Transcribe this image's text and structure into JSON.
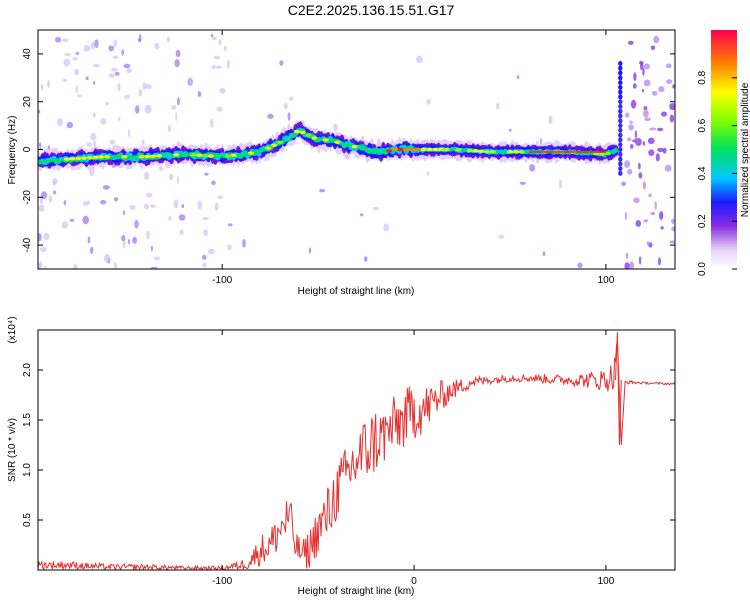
{
  "title": "C2E2.2025.136.15.51.G17",
  "chart_data": [
    {
      "type": "heatmap",
      "xlabel": "Height of straight line (km)",
      "ylabel": "Frequency (Hz)",
      "xlim": [
        -196,
        136
      ],
      "ylim": [
        -50,
        50
      ],
      "x_ticks": [
        -100,
        100
      ],
      "y_ticks": [
        -40,
        -20,
        0,
        20,
        40
      ],
      "colorbar": {
        "label": "Normalized spectral amplitude",
        "range": [
          0,
          1
        ],
        "ticks": [
          "0.0",
          "0.2",
          "0.4",
          "0.6",
          "0.8"
        ]
      },
      "ridge": {
        "x": [
          -196,
          -180,
          -160,
          -140,
          -120,
          -100,
          -90,
          -80,
          -70,
          -60,
          -55,
          -50,
          -45,
          -40,
          -35,
          -30,
          -25,
          -20,
          -15,
          -10,
          -5,
          0,
          20,
          40,
          60,
          80,
          100,
          106
        ],
        "y": [
          -5,
          -4,
          -3,
          -3,
          -2,
          -3,
          -2,
          -1,
          3,
          8,
          6,
          4,
          4,
          3,
          2,
          1,
          0,
          -1,
          -1,
          0,
          0,
          0,
          0,
          -1,
          -1,
          -1,
          -2,
          0
        ]
      },
      "grid": false
    },
    {
      "type": "line",
      "xlabel": "Height of straight line (km)",
      "ylabel": "SNR (10 * v/v)",
      "y_multiplier": "(x10⁴)",
      "xlim": [
        -196,
        136
      ],
      "ylim": [
        0,
        2.4
      ],
      "x_ticks": [
        -100,
        0,
        100
      ],
      "y_ticks": [
        "0.5",
        "1.0",
        "1.5",
        "2.0"
      ],
      "series": [
        {
          "color": "#e8302e",
          "x": [
            -196,
            -180,
            -160,
            -140,
            -120,
            -100,
            -90,
            -85,
            -80,
            -75,
            -70,
            -65,
            -62,
            -58,
            -55,
            -50,
            -45,
            -40,
            -35,
            -30,
            -25,
            -20,
            -15,
            -10,
            -5,
            0,
            5,
            10,
            15,
            20,
            30,
            40,
            50,
            60,
            70,
            80,
            90,
            100,
            104,
            106,
            108,
            110,
            120,
            136
          ],
          "y": [
            0.05,
            0.05,
            0.03,
            0.03,
            0.02,
            0.02,
            0.05,
            0.1,
            0.2,
            0.25,
            0.4,
            0.55,
            0.25,
            0.15,
            0.2,
            0.4,
            0.55,
            0.8,
            0.95,
            1.1,
            1.2,
            1.3,
            1.35,
            1.45,
            1.5,
            1.6,
            1.6,
            1.68,
            1.75,
            1.8,
            1.88,
            1.9,
            1.92,
            1.92,
            1.91,
            1.9,
            1.9,
            1.9,
            1.95,
            2.3,
            1.25,
            1.88,
            1.87,
            1.86
          ],
          "noise": [
            0.04,
            0.04,
            0.03,
            0.03,
            0.02,
            0.02,
            0.05,
            0.1,
            0.15,
            0.18,
            0.2,
            0.25,
            0.15,
            0.15,
            0.2,
            0.25,
            0.3,
            0.3,
            0.3,
            0.35,
            0.35,
            0.35,
            0.3,
            0.3,
            0.3,
            0.3,
            0.25,
            0.2,
            0.15,
            0.1,
            0.06,
            0.04,
            0.04,
            0.04,
            0.05,
            0.05,
            0.08,
            0.12,
            0.15,
            0.0,
            0.0,
            0.02,
            0.01,
            0.01
          ]
        }
      ],
      "grid": false
    }
  ]
}
